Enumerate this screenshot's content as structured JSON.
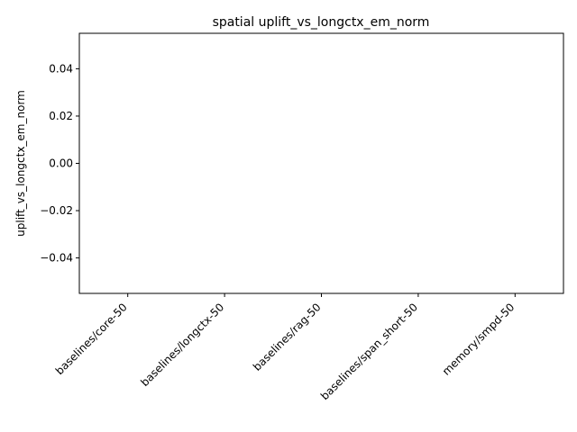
{
  "chart_data": {
    "type": "bar",
    "title": "spatial uplift_vs_longctx_em_norm",
    "xlabel": "",
    "ylabel": "uplift_vs_longctx_em_norm",
    "categories": [
      "baselines/core-50",
      "baselines/longctx-50",
      "baselines/rag-50",
      "baselines/span_short-50",
      "memory/smpd-50"
    ],
    "values": [
      0,
      0,
      0,
      0,
      0
    ],
    "ylim": [
      -0.055,
      0.055
    ],
    "yticks": [
      -0.04,
      -0.02,
      0.0,
      0.02,
      0.04
    ],
    "ytick_labels": [
      "−0.04",
      "−0.02",
      "0.00",
      "0.02",
      "0.04"
    ],
    "grid": false,
    "legend": "none",
    "colors": {
      "axes": "#000000",
      "background": "#ffffff",
      "bar": "#1f77b4"
    }
  }
}
